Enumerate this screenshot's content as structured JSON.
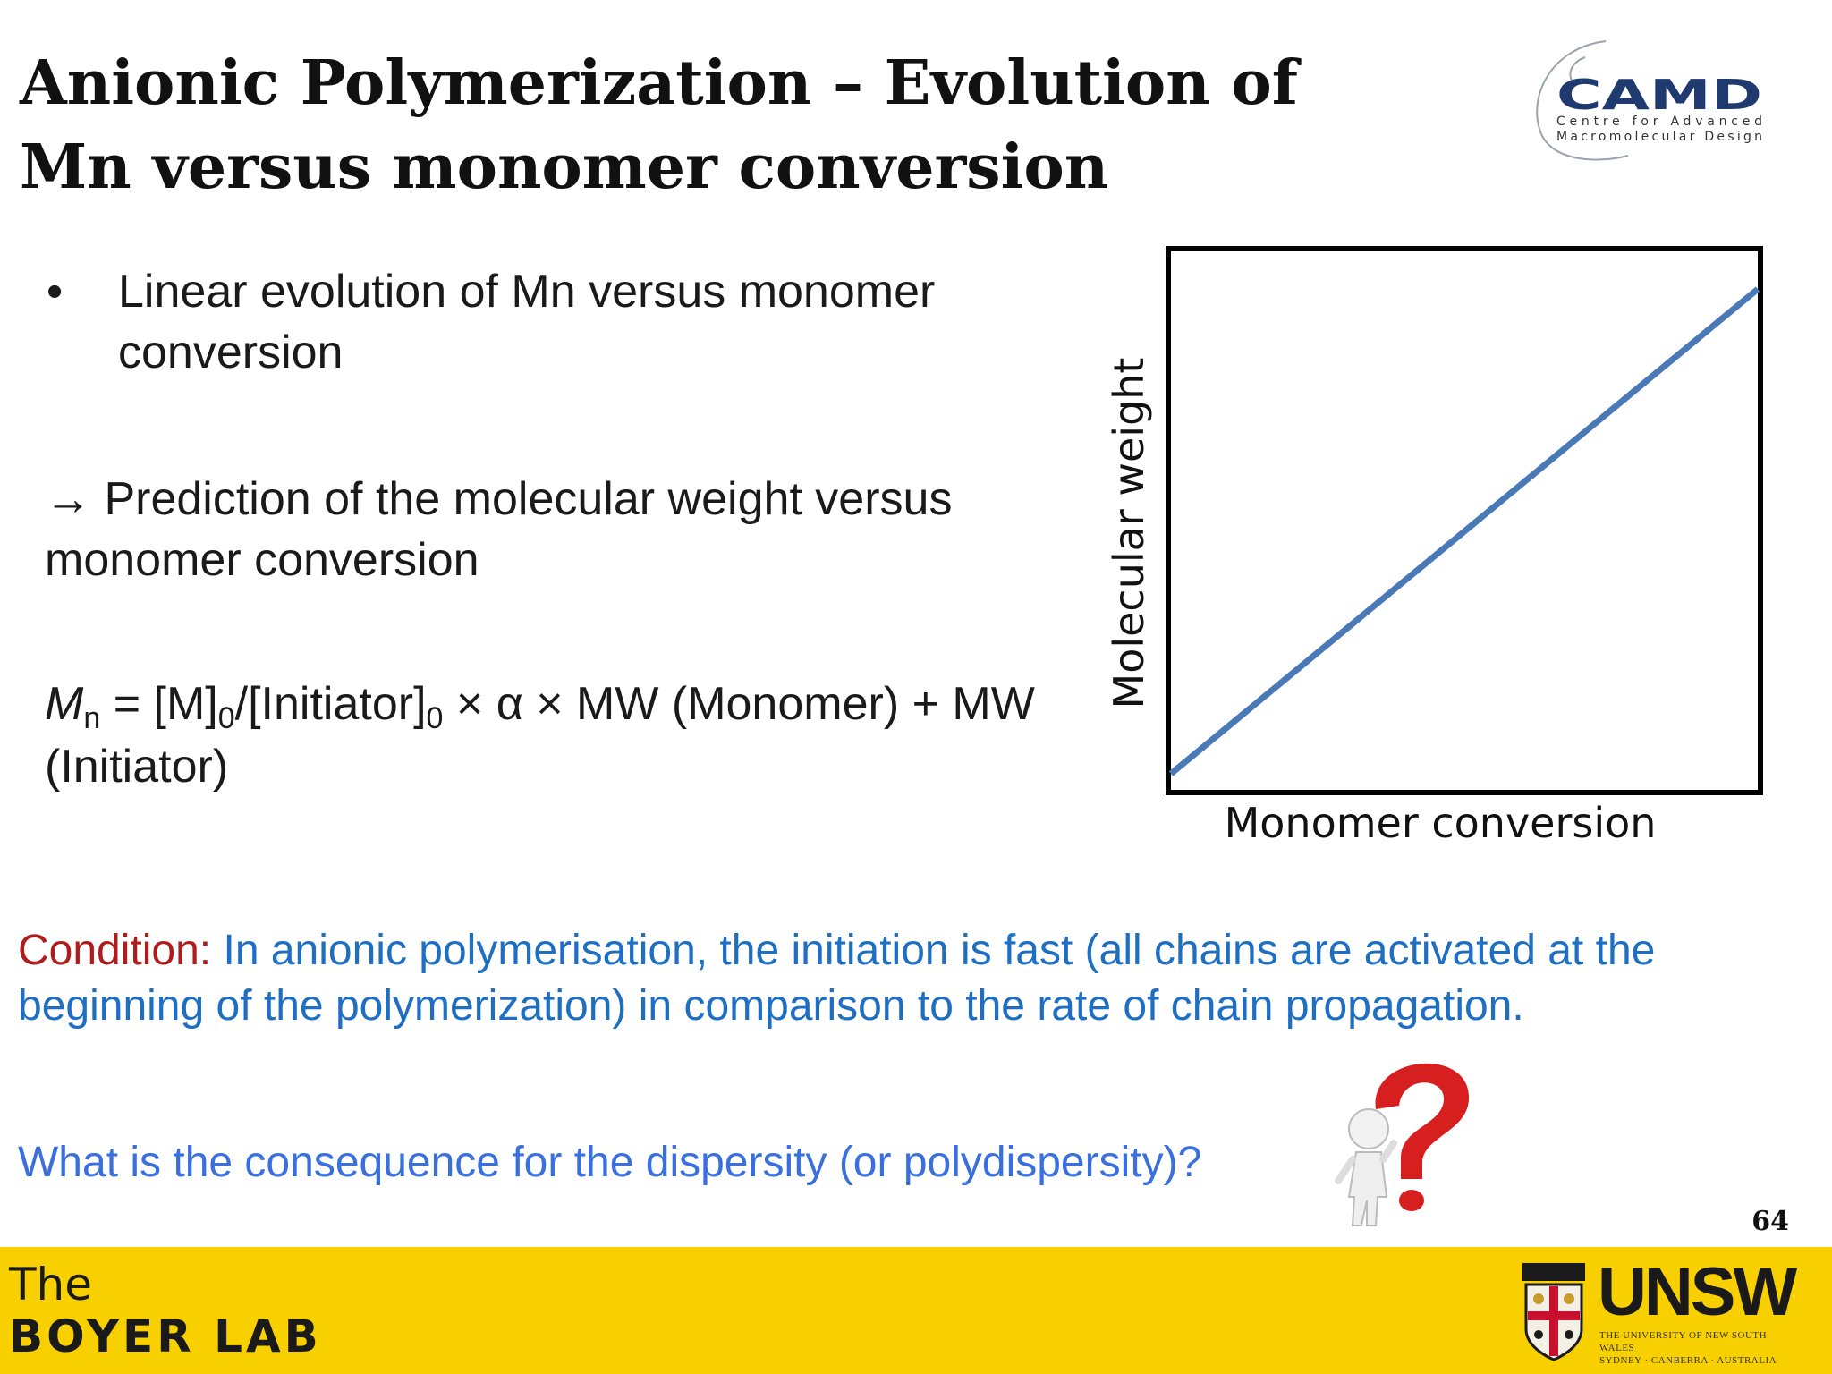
{
  "slide": {
    "title": "Anionic Polymerization – Evolution of Mn versus monomer conversion",
    "page_number": "64"
  },
  "camd_logo": {
    "name": "CAMD",
    "line1": "Centre for Advanced",
    "line2": "Macromolecular Design",
    "color": "#1f3a6e"
  },
  "bullet": {
    "symbol": "•",
    "text": "Linear evolution of Mn versus monomer conversion"
  },
  "prediction": {
    "text": "→ Prediction of the molecular weight versus monomer conversion"
  },
  "formula": {
    "mn": "M",
    "mn_sub": "n",
    "part1": " = [M]",
    "sub0a": "0",
    "part2": "/[Initiator]",
    "sub0b": "0",
    "part3": " × α × MW (Monomer) + MW (Initiator)"
  },
  "chart_data": {
    "type": "line",
    "xlabel": "Monomer conversion",
    "ylabel": "Molecular weight",
    "x": [
      0,
      1
    ],
    "series": [
      {
        "values": [
          0.03,
          0.93
        ],
        "color": "#4a79b8"
      }
    ],
    "xlim": [
      0,
      1
    ],
    "ylim": [
      0,
      1
    ],
    "grid": false
  },
  "condition": {
    "lead": "Condition:",
    "text": " In anionic polymerisation, the initiation is fast (all chains are activated at the beginning of the polymerization) in comparison to the rate of chain propagation."
  },
  "question": {
    "text": "What is the consequence for the dispersity (or polydispersity)?"
  },
  "footer": {
    "lab_line1": "The",
    "lab_line2": "BOYER LAB",
    "university": "UNSW",
    "university_sub1": "THE UNIVERSITY OF NEW SOUTH WALES",
    "university_sub2": "SYDNEY · CANBERRA · AUSTRALIA",
    "background": "#f8d000"
  }
}
